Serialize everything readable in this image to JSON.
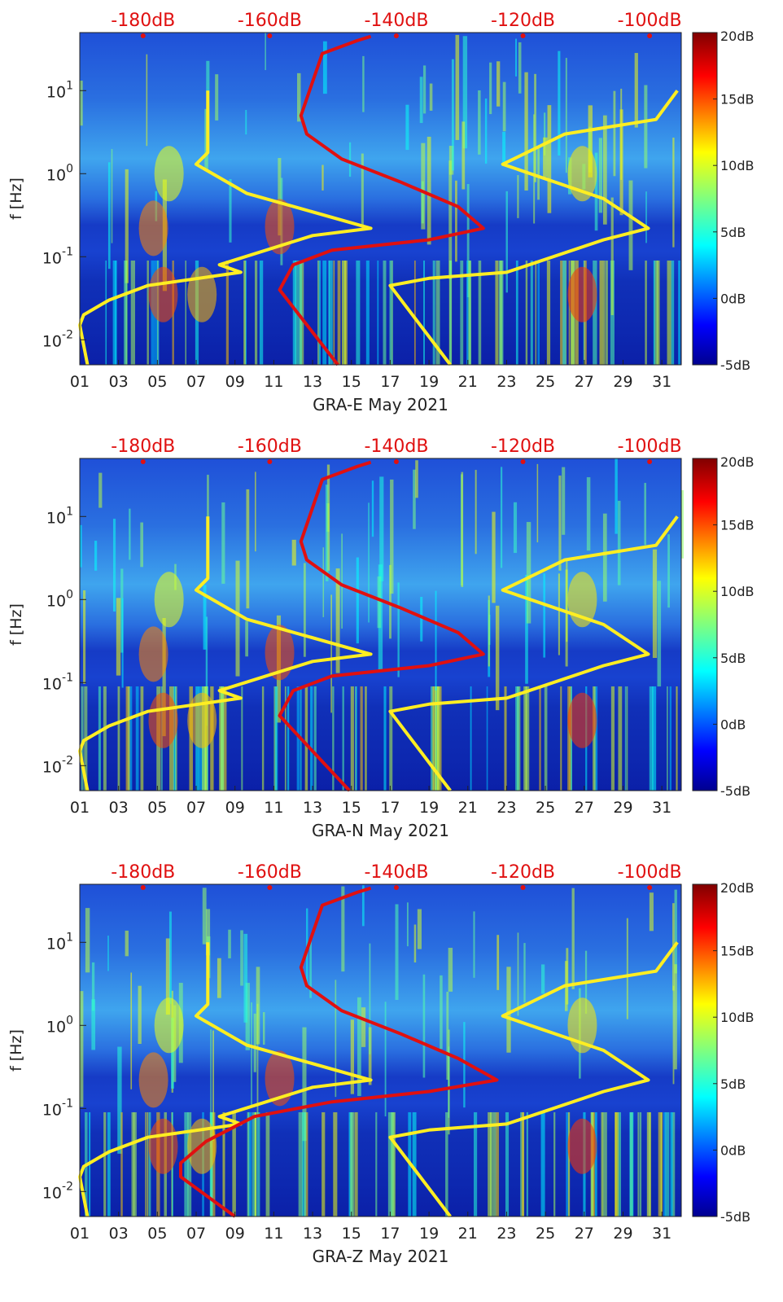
{
  "chart_data": [
    {
      "type": "heatmap",
      "xlabel": "GRA-E May 2021",
      "ylabel": "f [Hz]",
      "x_ticks": [
        "01",
        "03",
        "05",
        "07",
        "09",
        "11",
        "13",
        "15",
        "17",
        "19",
        "21",
        "23",
        "25",
        "27",
        "29",
        "31"
      ],
      "x_range": [
        1,
        32
      ],
      "y_ticks": [
        "10-2",
        "10-1",
        "100",
        "101"
      ],
      "y_range_hz": [
        0.005,
        50
      ],
      "y_scale": "log",
      "top_axis_ticks": [
        "-180dB",
        "-160dB",
        "-140dB",
        "-120dB",
        "-100dB"
      ],
      "top_axis_range_db": [
        -190,
        -95
      ],
      "colorbar_ticks": [
        "20dB",
        "15dB",
        "10dB",
        "5dB",
        "0dB",
        "-5dB"
      ],
      "colorbar_range_db": [
        -5,
        20
      ],
      "series": [
        {
          "color": "#ffee22",
          "points": [
            [
              7.6,
              10
            ],
            [
              7.6,
              1.8
            ],
            [
              7.0,
              1.3
            ],
            [
              9.6,
              0.58
            ],
            [
              16,
              0.22
            ],
            [
              13,
              0.18
            ],
            [
              8.2,
              0.08
            ],
            [
              9.3,
              0.065
            ],
            [
              4.5,
              0.045
            ],
            [
              2.5,
              0.03
            ],
            [
              1.2,
              0.02
            ],
            [
              1.0,
              0.015
            ],
            [
              1.4,
              0.005
            ]
          ]
        },
        {
          "color": "#ffee22",
          "points": [
            [
              31.8,
              10
            ],
            [
              30.7,
              4.5
            ],
            [
              26,
              3
            ],
            [
              22.8,
              1.3
            ],
            [
              28,
              0.5
            ],
            [
              30.3,
              0.22
            ],
            [
              28,
              0.16
            ],
            [
              23,
              0.065
            ],
            [
              19,
              0.055
            ],
            [
              17,
              0.045
            ],
            [
              20.1,
              0.005
            ]
          ]
        },
        {
          "color": "#e01010",
          "points": [
            [
              16,
              45
            ],
            [
              15.3,
              40
            ],
            [
              13.5,
              28
            ],
            [
              12.7,
              8
            ],
            [
              12.4,
              5
            ],
            [
              12.7,
              3
            ],
            [
              14.5,
              1.5
            ],
            [
              17.5,
              0.8
            ],
            [
              20.5,
              0.4
            ],
            [
              21.8,
              0.22
            ],
            [
              19,
              0.16
            ],
            [
              14,
              0.12
            ],
            [
              12,
              0.08
            ],
            [
              11.3,
              0.04
            ],
            [
              12.3,
              0.02
            ],
            [
              14.3,
              0.005
            ]
          ]
        }
      ]
    },
    {
      "type": "heatmap",
      "xlabel": "GRA-N May 2021",
      "ylabel": "f [Hz]",
      "x_ticks": [
        "01",
        "03",
        "05",
        "07",
        "09",
        "11",
        "13",
        "15",
        "17",
        "19",
        "21",
        "23",
        "25",
        "27",
        "29",
        "31"
      ],
      "x_range": [
        1,
        32
      ],
      "y_ticks": [
        "10-2",
        "10-1",
        "100",
        "101"
      ],
      "y_range_hz": [
        0.005,
        50
      ],
      "y_scale": "log",
      "top_axis_ticks": [
        "-180dB",
        "-160dB",
        "-140dB",
        "-120dB",
        "-100dB"
      ],
      "top_axis_range_db": [
        -190,
        -95
      ],
      "colorbar_ticks": [
        "20dB",
        "15dB",
        "10dB",
        "5dB",
        "0dB",
        "-5dB"
      ],
      "colorbar_range_db": [
        -5,
        20
      ],
      "series": [
        {
          "color": "#ffee22",
          "points": [
            [
              7.6,
              10
            ],
            [
              7.6,
              1.8
            ],
            [
              7.0,
              1.3
            ],
            [
              9.6,
              0.58
            ],
            [
              16,
              0.22
            ],
            [
              13,
              0.18
            ],
            [
              8.2,
              0.08
            ],
            [
              9.3,
              0.065
            ],
            [
              4.5,
              0.045
            ],
            [
              2.5,
              0.03
            ],
            [
              1.2,
              0.02
            ],
            [
              1.0,
              0.015
            ],
            [
              1.4,
              0.005
            ]
          ]
        },
        {
          "color": "#ffee22",
          "points": [
            [
              31.8,
              10
            ],
            [
              30.7,
              4.5
            ],
            [
              26,
              3
            ],
            [
              22.8,
              1.3
            ],
            [
              28,
              0.5
            ],
            [
              30.3,
              0.22
            ],
            [
              28,
              0.16
            ],
            [
              23,
              0.065
            ],
            [
              19,
              0.055
            ],
            [
              17,
              0.045
            ],
            [
              20.1,
              0.005
            ]
          ]
        },
        {
          "color": "#e01010",
          "points": [
            [
              16,
              45
            ],
            [
              15.3,
              40
            ],
            [
              13.5,
              28
            ],
            [
              12.7,
              8
            ],
            [
              12.4,
              5
            ],
            [
              12.7,
              3
            ],
            [
              14.5,
              1.5
            ],
            [
              17.5,
              0.8
            ],
            [
              20.5,
              0.4
            ],
            [
              21.8,
              0.22
            ],
            [
              19,
              0.16
            ],
            [
              14,
              0.12
            ],
            [
              12,
              0.08
            ],
            [
              11.3,
              0.04
            ],
            [
              12.5,
              0.02
            ],
            [
              14.9,
              0.005
            ]
          ]
        }
      ]
    },
    {
      "type": "heatmap",
      "xlabel": "GRA-Z May 2021",
      "ylabel": "f [Hz]",
      "x_ticks": [
        "01",
        "03",
        "05",
        "07",
        "09",
        "11",
        "13",
        "15",
        "17",
        "19",
        "21",
        "23",
        "25",
        "27",
        "29",
        "31"
      ],
      "x_range": [
        1,
        32
      ],
      "y_ticks": [
        "10-2",
        "10-1",
        "100",
        "101"
      ],
      "y_range_hz": [
        0.005,
        50
      ],
      "y_scale": "log",
      "top_axis_ticks": [
        "-180dB",
        "-160dB",
        "-140dB",
        "-120dB",
        "-100dB"
      ],
      "top_axis_range_db": [
        -190,
        -95
      ],
      "colorbar_ticks": [
        "20dB",
        "15dB",
        "10dB",
        "5dB",
        "0dB",
        "-5dB"
      ],
      "colorbar_range_db": [
        -5,
        20
      ],
      "series": [
        {
          "color": "#ffee22",
          "points": [
            [
              7.6,
              10
            ],
            [
              7.6,
              1.8
            ],
            [
              7.0,
              1.3
            ],
            [
              9.6,
              0.58
            ],
            [
              16,
              0.22
            ],
            [
              13,
              0.18
            ],
            [
              8.2,
              0.08
            ],
            [
              9.3,
              0.065
            ],
            [
              4.5,
              0.045
            ],
            [
              2.5,
              0.03
            ],
            [
              1.2,
              0.02
            ],
            [
              1.0,
              0.015
            ],
            [
              1.4,
              0.005
            ]
          ]
        },
        {
          "color": "#ffee22",
          "points": [
            [
              31.8,
              10
            ],
            [
              30.7,
              4.5
            ],
            [
              26,
              3
            ],
            [
              22.8,
              1.3
            ],
            [
              28,
              0.5
            ],
            [
              30.3,
              0.22
            ],
            [
              28,
              0.16
            ],
            [
              23,
              0.065
            ],
            [
              19,
              0.055
            ],
            [
              17,
              0.045
            ],
            [
              20.1,
              0.005
            ]
          ]
        },
        {
          "color": "#e01010",
          "points": [
            [
              16,
              45
            ],
            [
              15.3,
              40
            ],
            [
              13.5,
              28
            ],
            [
              12.7,
              8
            ],
            [
              12.4,
              5
            ],
            [
              12.7,
              3
            ],
            [
              14.5,
              1.5
            ],
            [
              17.5,
              0.8
            ],
            [
              20.5,
              0.4
            ],
            [
              22.5,
              0.22
            ],
            [
              19,
              0.16
            ],
            [
              14,
              0.12
            ],
            [
              10,
              0.08
            ],
            [
              7.5,
              0.04
            ],
            [
              6.2,
              0.022
            ],
            [
              6.2,
              0.015
            ],
            [
              9.0,
              0.005
            ]
          ]
        }
      ]
    }
  ]
}
